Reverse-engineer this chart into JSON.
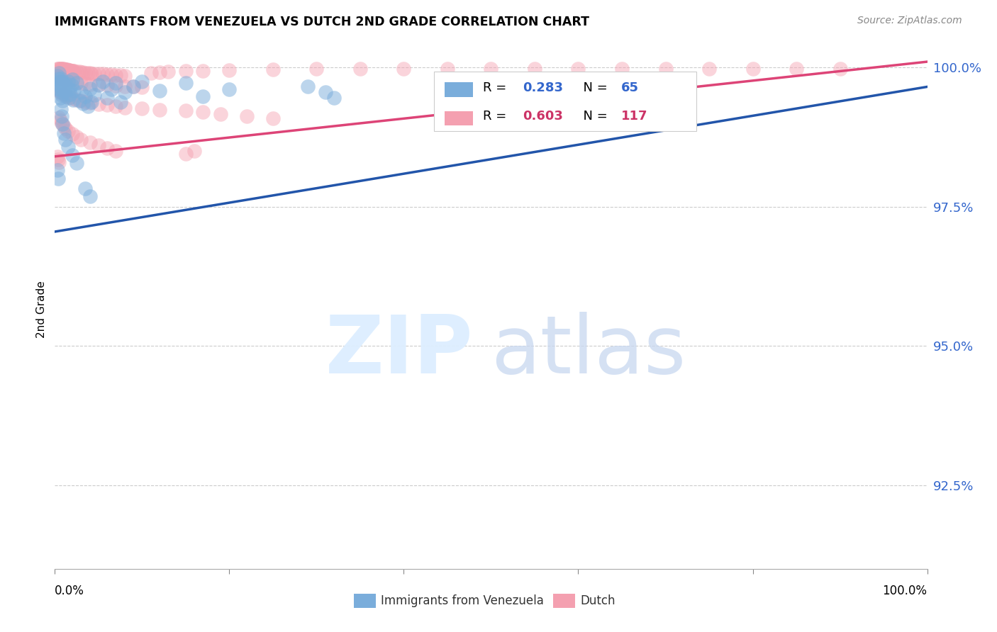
{
  "title": "IMMIGRANTS FROM VENEZUELA VS DUTCH 2ND GRADE CORRELATION CHART",
  "source": "Source: ZipAtlas.com",
  "ylabel": "2nd Grade",
  "xlim": [
    0.0,
    1.0
  ],
  "ylim": [
    0.91,
    1.003
  ],
  "yticks": [
    0.925,
    0.95,
    0.975,
    1.0
  ],
  "ytick_labels": [
    "92.5%",
    "95.0%",
    "97.5%",
    "100.0%"
  ],
  "color_venezuela": "#7aaddb",
  "color_dutch": "#f4a0b0",
  "line_color_venezuela": "#2255aa",
  "line_color_dutch": "#dd4477",
  "background_color": "#ffffff",
  "legend_label_venezuela": "Immigrants from Venezuela",
  "legend_label_dutch": "Dutch",
  "r_venezuela": "0.283",
  "n_venezuela": "65",
  "r_dutch": "0.603",
  "n_dutch": "117",
  "ven_line_x0": 0.0,
  "ven_line_y0": 0.9705,
  "ven_line_x1": 1.0,
  "ven_line_y1": 0.9965,
  "dutch_line_x0": 0.0,
  "dutch_line_y0": 0.984,
  "dutch_line_x1": 1.0,
  "dutch_line_y1": 1.001,
  "scatter_venezuela": [
    [
      0.003,
      0.9985
    ],
    [
      0.004,
      0.998
    ],
    [
      0.005,
      0.999
    ],
    [
      0.006,
      0.9975
    ],
    [
      0.004,
      0.996
    ],
    [
      0.005,
      0.997
    ],
    [
      0.006,
      0.9965
    ],
    [
      0.007,
      0.998
    ],
    [
      0.008,
      0.9955
    ],
    [
      0.009,
      0.9975
    ],
    [
      0.01,
      0.997
    ],
    [
      0.006,
      0.9945
    ],
    [
      0.007,
      0.996
    ],
    [
      0.008,
      0.995
    ],
    [
      0.009,
      0.994
    ],
    [
      0.01,
      0.9965
    ],
    [
      0.011,
      0.9958
    ],
    [
      0.012,
      0.9972
    ],
    [
      0.013,
      0.9948
    ],
    [
      0.014,
      0.9962
    ],
    [
      0.015,
      0.9975
    ],
    [
      0.016,
      0.9945
    ],
    [
      0.017,
      0.996
    ],
    [
      0.018,
      0.9952
    ],
    [
      0.019,
      0.9968
    ],
    [
      0.02,
      0.9978
    ],
    [
      0.021,
      0.9942
    ],
    [
      0.022,
      0.9958
    ],
    [
      0.025,
      0.9972
    ],
    [
      0.028,
      0.994
    ],
    [
      0.03,
      0.9955
    ],
    [
      0.032,
      0.9935
    ],
    [
      0.035,
      0.9948
    ],
    [
      0.038,
      0.993
    ],
    [
      0.04,
      0.9962
    ],
    [
      0.042,
      0.9938
    ],
    [
      0.045,
      0.995
    ],
    [
      0.05,
      0.9968
    ],
    [
      0.055,
      0.9975
    ],
    [
      0.06,
      0.9945
    ],
    [
      0.065,
      0.996
    ],
    [
      0.07,
      0.9972
    ],
    [
      0.075,
      0.9938
    ],
    [
      0.08,
      0.9955
    ],
    [
      0.09,
      0.9965
    ],
    [
      0.1,
      0.9975
    ],
    [
      0.12,
      0.9958
    ],
    [
      0.15,
      0.9972
    ],
    [
      0.17,
      0.9948
    ],
    [
      0.2,
      0.996
    ],
    [
      0.007,
      0.9925
    ],
    [
      0.008,
      0.9912
    ],
    [
      0.009,
      0.9898
    ],
    [
      0.01,
      0.9882
    ],
    [
      0.012,
      0.987
    ],
    [
      0.015,
      0.9858
    ],
    [
      0.02,
      0.9842
    ],
    [
      0.025,
      0.9828
    ],
    [
      0.003,
      0.9815
    ],
    [
      0.004,
      0.98
    ],
    [
      0.29,
      0.9965
    ],
    [
      0.31,
      0.9955
    ],
    [
      0.32,
      0.9945
    ],
    [
      0.035,
      0.9782
    ],
    [
      0.04,
      0.9768
    ]
  ],
  "scatter_dutch": [
    [
      0.003,
      0.9998
    ],
    [
      0.004,
      0.9998
    ],
    [
      0.005,
      0.9998
    ],
    [
      0.006,
      0.9997
    ],
    [
      0.007,
      0.9997
    ],
    [
      0.008,
      0.9997
    ],
    [
      0.009,
      0.9997
    ],
    [
      0.01,
      0.9997
    ],
    [
      0.011,
      0.9996
    ],
    [
      0.012,
      0.9996
    ],
    [
      0.013,
      0.9996
    ],
    [
      0.014,
      0.9996
    ],
    [
      0.015,
      0.9995
    ],
    [
      0.016,
      0.9995
    ],
    [
      0.017,
      0.9995
    ],
    [
      0.018,
      0.9994
    ],
    [
      0.019,
      0.9994
    ],
    [
      0.02,
      0.9994
    ],
    [
      0.021,
      0.9993
    ],
    [
      0.022,
      0.9993
    ],
    [
      0.025,
      0.9992
    ],
    [
      0.028,
      0.9992
    ],
    [
      0.03,
      0.9991
    ],
    [
      0.032,
      0.9991
    ],
    [
      0.035,
      0.999
    ],
    [
      0.038,
      0.999
    ],
    [
      0.04,
      0.999
    ],
    [
      0.042,
      0.9989
    ],
    [
      0.045,
      0.9989
    ],
    [
      0.05,
      0.9988
    ],
    [
      0.055,
      0.9988
    ],
    [
      0.06,
      0.9987
    ],
    [
      0.065,
      0.9987
    ],
    [
      0.07,
      0.9986
    ],
    [
      0.075,
      0.9986
    ],
    [
      0.08,
      0.9985
    ],
    [
      0.005,
      0.9982
    ],
    [
      0.006,
      0.9981
    ],
    [
      0.007,
      0.998
    ],
    [
      0.008,
      0.998
    ],
    [
      0.009,
      0.9979
    ],
    [
      0.01,
      0.9978
    ],
    [
      0.012,
      0.9977
    ],
    [
      0.015,
      0.9976
    ],
    [
      0.018,
      0.9975
    ],
    [
      0.02,
      0.9974
    ],
    [
      0.025,
      0.9973
    ],
    [
      0.03,
      0.9972
    ],
    [
      0.035,
      0.9971
    ],
    [
      0.04,
      0.997
    ],
    [
      0.05,
      0.9969
    ],
    [
      0.06,
      0.9968
    ],
    [
      0.07,
      0.9967
    ],
    [
      0.08,
      0.9966
    ],
    [
      0.09,
      0.9965
    ],
    [
      0.1,
      0.9964
    ],
    [
      0.005,
      0.9958
    ],
    [
      0.006,
      0.9956
    ],
    [
      0.008,
      0.9954
    ],
    [
      0.01,
      0.9952
    ],
    [
      0.012,
      0.995
    ],
    [
      0.015,
      0.9948
    ],
    [
      0.018,
      0.9946
    ],
    [
      0.02,
      0.9944
    ],
    [
      0.025,
      0.9942
    ],
    [
      0.03,
      0.994
    ],
    [
      0.035,
      0.9938
    ],
    [
      0.04,
      0.9936
    ],
    [
      0.05,
      0.9934
    ],
    [
      0.06,
      0.9932
    ],
    [
      0.07,
      0.993
    ],
    [
      0.08,
      0.9928
    ],
    [
      0.1,
      0.9926
    ],
    [
      0.12,
      0.9924
    ],
    [
      0.15,
      0.9922
    ],
    [
      0.17,
      0.992
    ],
    [
      0.11,
      0.999
    ],
    [
      0.12,
      0.9991
    ],
    [
      0.13,
      0.9992
    ],
    [
      0.15,
      0.9993
    ],
    [
      0.17,
      0.9994
    ],
    [
      0.2,
      0.9995
    ],
    [
      0.25,
      0.9996
    ],
    [
      0.3,
      0.9997
    ],
    [
      0.35,
      0.9997
    ],
    [
      0.4,
      0.9997
    ],
    [
      0.45,
      0.9998
    ],
    [
      0.5,
      0.9998
    ],
    [
      0.55,
      0.9998
    ],
    [
      0.6,
      0.9998
    ],
    [
      0.65,
      0.9998
    ],
    [
      0.7,
      0.9998
    ],
    [
      0.75,
      0.9998
    ],
    [
      0.8,
      0.9998
    ],
    [
      0.85,
      0.9998
    ],
    [
      0.9,
      0.9998
    ],
    [
      0.19,
      0.9916
    ],
    [
      0.22,
      0.9912
    ],
    [
      0.25,
      0.9908
    ],
    [
      0.005,
      0.991
    ],
    [
      0.006,
      0.9905
    ],
    [
      0.008,
      0.99
    ],
    [
      0.01,
      0.9895
    ],
    [
      0.012,
      0.989
    ],
    [
      0.015,
      0.9885
    ],
    [
      0.02,
      0.988
    ],
    [
      0.025,
      0.9875
    ],
    [
      0.03,
      0.987
    ],
    [
      0.04,
      0.9865
    ],
    [
      0.05,
      0.986
    ],
    [
      0.06,
      0.9855
    ],
    [
      0.07,
      0.985
    ],
    [
      0.003,
      0.984
    ],
    [
      0.004,
      0.9835
    ],
    [
      0.005,
      0.983
    ],
    [
      0.15,
      0.9845
    ],
    [
      0.16,
      0.985
    ]
  ]
}
